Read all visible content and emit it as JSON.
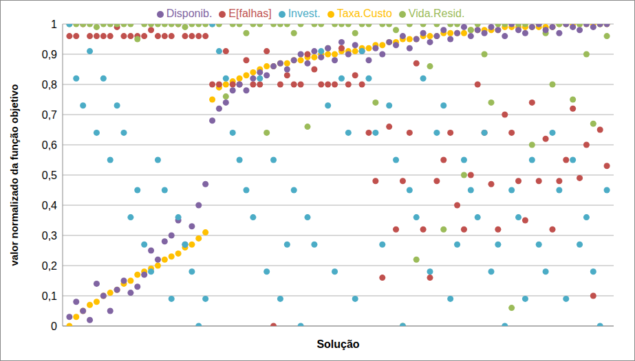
{
  "chart_data": {
    "type": "scatter",
    "x_label": "Solução",
    "y_label": "valor normalizado da função objetivo",
    "x": [
      1,
      2,
      3,
      4,
      5,
      6,
      7,
      8,
      9,
      10,
      11,
      12,
      13,
      14,
      15,
      16,
      17,
      18,
      19,
      20,
      21,
      22,
      23,
      24,
      25,
      26,
      27,
      28,
      29,
      30,
      31,
      32,
      33,
      34,
      35,
      36,
      37,
      38,
      39,
      40,
      41,
      42,
      43,
      44,
      45,
      46,
      47,
      48,
      49,
      50,
      51,
      52,
      53,
      54,
      55,
      56,
      57,
      58,
      59,
      60,
      61,
      62,
      63,
      64,
      65,
      66,
      67,
      68,
      69,
      70,
      71,
      72,
      73,
      74,
      75,
      76,
      77,
      78,
      79,
      80
    ],
    "xlim": [
      0,
      81
    ],
    "ylim": [
      0,
      1
    ],
    "yticks": [
      0,
      {
        "value": 0.1,
        "label": "0,1"
      },
      {
        "value": 0.2,
        "label": "0,2"
      },
      {
        "value": 0.3,
        "label": "0,3"
      },
      {
        "value": 0.4,
        "label": "0,4"
      },
      {
        "value": 0.5,
        "label": "0,5"
      },
      {
        "value": 0.6,
        "label": "0,6"
      },
      {
        "value": 0.7,
        "label": "0,7"
      },
      {
        "value": 0.8,
        "label": "0,8"
      },
      {
        "value": 0.9,
        "label": "0,9"
      },
      1
    ],
    "grid": true,
    "legend": "top",
    "tick_labels": "y",
    "marker": "circle",
    "series": [
      {
        "name": "Taxa.Custo",
        "color": "#ffc000",
        "values": [
          0,
          0.03,
          0.05,
          0.07,
          0.08,
          0.1,
          0.11,
          0.12,
          0.14,
          0.15,
          0.17,
          0.18,
          0.19,
          0.2,
          0.22,
          0.23,
          0.24,
          0.26,
          0.27,
          0.29,
          0.31,
          0.75,
          0.79,
          0.8,
          0.81,
          0.82,
          0.83,
          0.84,
          0.85,
          0.86,
          0.86,
          0.87,
          0.87,
          0.88,
          0.88,
          0.89,
          0.89,
          0.9,
          0.9,
          0.9,
          0.91,
          0.91,
          0.91,
          0.92,
          0.92,
          0.93,
          0.93,
          0.94,
          0.94,
          0.95,
          0.95,
          0.95,
          0.96,
          0.96,
          0.96,
          0.97,
          0.97,
          0.97,
          0.97,
          0.98,
          0.98,
          0.98,
          0.98,
          0.98,
          0.99,
          0.99,
          0.99,
          0.99,
          0.99,
          0.99,
          0.99,
          0.99,
          1,
          1,
          1,
          1,
          1,
          1,
          1,
          1
        ]
      },
      {
        "name": "E[falhas]",
        "color": "#c0504d",
        "values": [
          0.96,
          0.96,
          1,
          0.96,
          0.96,
          0.96,
          0.96,
          0.99,
          0.96,
          0.96,
          0.96,
          0.96,
          0.98,
          0.96,
          0.96,
          0.96,
          1,
          0.96,
          0.96,
          0.96,
          0.96,
          0.8,
          0.8,
          0.91,
          0.8,
          0.8,
          0.88,
          0.8,
          0.8,
          0.91,
          0,
          0.8,
          0.83,
          0.8,
          0.8,
          0.9,
          0.85,
          0.8,
          0.8,
          0.8,
          0.92,
          0.8,
          0.83,
          0.8,
          0.64,
          0.48,
          0.16,
          0.66,
          0.32,
          0.48,
          0.64,
          0.87,
          0.32,
          0.16,
          0.48,
          0.55,
          0.64,
          0.4,
          0.32,
          0.5,
          0.8,
          0.64,
          0.47,
          0.32,
          0.7,
          0.64,
          0.48,
          0.35,
          0.74,
          0.48,
          0.62,
          0.32,
          0.48,
          0.55,
          0.72,
          0.49,
          0.6,
          0.1,
          0.65,
          0.53
        ]
      },
      {
        "name": "Vida.Resid.",
        "color": "#9bbb59",
        "values": [
          1,
          1,
          1,
          1,
          0.99,
          1,
          1,
          1,
          1,
          1,
          0.95,
          1,
          1,
          1,
          1,
          1,
          1,
          0.99,
          1,
          1,
          1,
          1,
          1,
          0.76,
          1,
          1,
          0.97,
          1,
          1,
          0.64,
          1,
          1,
          1,
          0.97,
          1,
          0.66,
          1,
          1,
          0.92,
          1,
          1,
          1,
          0.97,
          1,
          1,
          0.74,
          1,
          1,
          0.98,
          0,
          1,
          0.22,
          1,
          0.86,
          1,
          0.32,
          1,
          1,
          0.5,
          0.98,
          1,
          0.9,
          0.74,
          1,
          1,
          0.06,
          1,
          1,
          0.6,
          1,
          0.97,
          0.8,
          1,
          1,
          0.75,
          1,
          0.9,
          0.67,
          1,
          0.96
        ]
      },
      {
        "name": "Disponib.",
        "color": "#8064a2",
        "values": [
          0.03,
          0.08,
          0.05,
          0.02,
          0.14,
          0.1,
          0.05,
          0.12,
          0.15,
          0.11,
          0.13,
          0.17,
          0.25,
          0.22,
          0.28,
          0.3,
          0.35,
          0.27,
          0.33,
          0.4,
          0.47,
          0.68,
          0.72,
          0.74,
          0.78,
          0.8,
          0.78,
          0.82,
          0.84,
          0.83,
          0.86,
          0.87,
          0.85,
          0.88,
          0.9,
          0.87,
          0.91,
          0.89,
          0.92,
          0.88,
          0.94,
          0.9,
          0.93,
          0.91,
          0.88,
          0.92,
          0.9,
          0.94,
          0.93,
          0.96,
          0.92,
          0.95,
          0.97,
          0.94,
          0.96,
          0.98,
          0.95,
          0.97,
          0.99,
          0.96,
          0.98,
          0.97,
          0.99,
          0.98,
          0.96,
          1,
          0.98,
          0.97,
          0.99,
          1,
          0.98,
          0.99,
          0.97,
          1,
          0.99,
          0.98,
          1,
          0.99,
          1,
          1
        ]
      },
      {
        "name": "Invest.",
        "color": "#4bacc6",
        "values": [
          1,
          0.82,
          0.73,
          0.91,
          0.64,
          0.82,
          0.55,
          0.73,
          0.64,
          0.36,
          0.45,
          0.27,
          0.18,
          0.55,
          0.45,
          0.09,
          0.36,
          0.27,
          0.18,
          0,
          0.09,
          1,
          0.91,
          0.82,
          0.64,
          0.55,
          0.45,
          0.36,
          0.82,
          0.18,
          0.55,
          0.09,
          0.27,
          0.45,
          0,
          0.36,
          0.27,
          0.91,
          0.73,
          0.18,
          0.82,
          0.64,
          0.09,
          0.91,
          0.82,
          0.64,
          0.27,
          0.73,
          0.55,
          0,
          0.45,
          0.36,
          0.82,
          0.18,
          0.64,
          0.73,
          0.09,
          0.27,
          0.55,
          0.45,
          0.36,
          0.64,
          0.18,
          0.27,
          0,
          0.45,
          0.36,
          0.09,
          0.55,
          0.27,
          0.18,
          0.64,
          0.45,
          0.09,
          0.55,
          0.27,
          0.36,
          0.18,
          0,
          0.45
        ]
      }
    ]
  }
}
